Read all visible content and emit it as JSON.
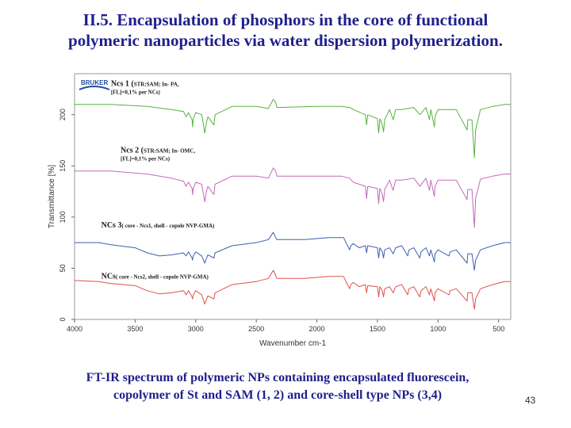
{
  "slide": {
    "title_line1": "II.5. Encapsulation of phosphors in the core of functional",
    "title_line2": "polymeric nanoparticles via water dispersion polymerization.",
    "caption_line1": "FT-IR spectrum of polymeric NPs containing encapsulated fluorescein,",
    "caption_line2": "copolymer of St and SAM (1, 2) and core-shell type NPs (3,4)",
    "page_number": "43",
    "logo_text": "BRUKER"
  },
  "chart_data": {
    "type": "line",
    "xlabel": "Wavenumber cm-1",
    "ylabel": "Transmittance [%]",
    "xlim": [
      4000,
      400
    ],
    "ylim": [
      0,
      240
    ],
    "x_reversed": true,
    "grid": false,
    "x_ticks": [
      4000,
      3500,
      3000,
      2500,
      2000,
      1500,
      1000,
      500
    ],
    "y_ticks": [
      0,
      50,
      100,
      150,
      200
    ],
    "series": [
      {
        "name": "Ncs 1 (STR:SAM; In- PA, [FL]=0,1% per NCs)",
        "label_main": "Ncs 1 (",
        "label_small": "STR:SAM; In- PA,",
        "label_line2": "[FL]=0,1% per NCs)",
        "color": "#57b33e",
        "points": [
          [
            4000,
            210
          ],
          [
            3700,
            210
          ],
          [
            3400,
            208
          ],
          [
            3200,
            205
          ],
          [
            3100,
            203
          ],
          [
            3080,
            198
          ],
          [
            3060,
            202
          ],
          [
            3030,
            195
          ],
          [
            3026,
            188
          ],
          [
            3020,
            196
          ],
          [
            3000,
            202
          ],
          [
            2950,
            200
          ],
          [
            2925,
            182
          ],
          [
            2910,
            193
          ],
          [
            2900,
            198
          ],
          [
            2850,
            190
          ],
          [
            2840,
            200
          ],
          [
            2700,
            208
          ],
          [
            2500,
            208
          ],
          [
            2400,
            206
          ],
          [
            2360,
            215
          ],
          [
            2340,
            212
          ],
          [
            2330,
            207
          ],
          [
            2000,
            208
          ],
          [
            1800,
            208
          ],
          [
            1730,
            207
          ],
          [
            1700,
            205
          ],
          [
            1600,
            200
          ],
          [
            1590,
            190
          ],
          [
            1580,
            200
          ],
          [
            1500,
            196
          ],
          [
            1490,
            182
          ],
          [
            1480,
            196
          ],
          [
            1460,
            190
          ],
          [
            1450,
            183
          ],
          [
            1440,
            195
          ],
          [
            1400,
            205
          ],
          [
            1370,
            195
          ],
          [
            1350,
            205
          ],
          [
            1300,
            205
          ],
          [
            1200,
            207
          ],
          [
            1150,
            200
          ],
          [
            1100,
            207
          ],
          [
            1070,
            195
          ],
          [
            1060,
            205
          ],
          [
            1030,
            188
          ],
          [
            1025,
            198
          ],
          [
            1000,
            205
          ],
          [
            900,
            205
          ],
          [
            850,
            205
          ],
          [
            760,
            185
          ],
          [
            755,
            195
          ],
          [
            720,
            195
          ],
          [
            700,
            158
          ],
          [
            690,
            185
          ],
          [
            650,
            205
          ],
          [
            550,
            208
          ],
          [
            450,
            210
          ],
          [
            400,
            210
          ]
        ]
      },
      {
        "name": "Ncs 2 (STR:SAM; In- OMC, [FL]=0,1% per NCs)",
        "label_main": "Ncs 2 (",
        "label_small": "STR:SAM; In- OMC,",
        "label_line2": "[FL]=0,1% per NCs)",
        "color": "#c46ab8",
        "points": [
          [
            4000,
            145
          ],
          [
            3700,
            145
          ],
          [
            3400,
            142
          ],
          [
            3200,
            138
          ],
          [
            3100,
            135
          ],
          [
            3080,
            130
          ],
          [
            3060,
            134
          ],
          [
            3030,
            128
          ],
          [
            3026,
            122
          ],
          [
            3020,
            128
          ],
          [
            3000,
            134
          ],
          [
            2950,
            132
          ],
          [
            2925,
            115
          ],
          [
            2910,
            126
          ],
          [
            2900,
            130
          ],
          [
            2850,
            122
          ],
          [
            2840,
            132
          ],
          [
            2700,
            140
          ],
          [
            2500,
            140
          ],
          [
            2400,
            138
          ],
          [
            2360,
            148
          ],
          [
            2340,
            145
          ],
          [
            2330,
            140
          ],
          [
            2000,
            140
          ],
          [
            1800,
            140
          ],
          [
            1730,
            138
          ],
          [
            1700,
            134
          ],
          [
            1600,
            130
          ],
          [
            1590,
            118
          ],
          [
            1580,
            130
          ],
          [
            1500,
            128
          ],
          [
            1490,
            113
          ],
          [
            1480,
            128
          ],
          [
            1460,
            122
          ],
          [
            1450,
            115
          ],
          [
            1440,
            127
          ],
          [
            1400,
            136
          ],
          [
            1370,
            126
          ],
          [
            1350,
            136
          ],
          [
            1300,
            136
          ],
          [
            1200,
            138
          ],
          [
            1150,
            130
          ],
          [
            1100,
            138
          ],
          [
            1070,
            126
          ],
          [
            1060,
            136
          ],
          [
            1030,
            120
          ],
          [
            1025,
            130
          ],
          [
            1000,
            136
          ],
          [
            900,
            136
          ],
          [
            850,
            136
          ],
          [
            760,
            117
          ],
          [
            755,
            127
          ],
          [
            720,
            127
          ],
          [
            700,
            90
          ],
          [
            690,
            118
          ],
          [
            650,
            137
          ],
          [
            550,
            140
          ],
          [
            450,
            142
          ],
          [
            400,
            142
          ]
        ]
      },
      {
        "name": "NCs 3( core - Ncs1, shell - copole NVP-GMA)",
        "label_main": "NCs 3",
        "label_small": "( core - Ncs1, shell - copole NVP-GMA)",
        "label_line2": "",
        "color": "#3f5fb0",
        "points": [
          [
            4000,
            75
          ],
          [
            3800,
            75
          ],
          [
            3700,
            73
          ],
          [
            3500,
            70
          ],
          [
            3400,
            65
          ],
          [
            3300,
            62
          ],
          [
            3200,
            63
          ],
          [
            3100,
            65
          ],
          [
            3080,
            62
          ],
          [
            3060,
            66
          ],
          [
            3030,
            60
          ],
          [
            3026,
            58
          ],
          [
            3020,
            62
          ],
          [
            3000,
            66
          ],
          [
            2950,
            62
          ],
          [
            2925,
            55
          ],
          [
            2910,
            60
          ],
          [
            2900,
            63
          ],
          [
            2850,
            60
          ],
          [
            2840,
            65
          ],
          [
            2700,
            72
          ],
          [
            2500,
            75
          ],
          [
            2400,
            78
          ],
          [
            2360,
            85
          ],
          [
            2340,
            80
          ],
          [
            2330,
            78
          ],
          [
            2100,
            78
          ],
          [
            1900,
            80
          ],
          [
            1780,
            80
          ],
          [
            1730,
            68
          ],
          [
            1720,
            72
          ],
          [
            1700,
            74
          ],
          [
            1650,
            70
          ],
          [
            1600,
            72
          ],
          [
            1590,
            65
          ],
          [
            1580,
            72
          ],
          [
            1500,
            70
          ],
          [
            1490,
            60
          ],
          [
            1480,
            70
          ],
          [
            1460,
            66
          ],
          [
            1450,
            60
          ],
          [
            1440,
            68
          ],
          [
            1400,
            70
          ],
          [
            1370,
            64
          ],
          [
            1350,
            70
          ],
          [
            1300,
            72
          ],
          [
            1250,
            62
          ],
          [
            1240,
            68
          ],
          [
            1200,
            70
          ],
          [
            1150,
            60
          ],
          [
            1140,
            66
          ],
          [
            1100,
            70
          ],
          [
            1070,
            62
          ],
          [
            1060,
            68
          ],
          [
            1030,
            56
          ],
          [
            1025,
            64
          ],
          [
            1000,
            68
          ],
          [
            910,
            62
          ],
          [
            900,
            66
          ],
          [
            850,
            68
          ],
          [
            760,
            55
          ],
          [
            755,
            64
          ],
          [
            720,
            64
          ],
          [
            700,
            48
          ],
          [
            690,
            58
          ],
          [
            650,
            68
          ],
          [
            550,
            72
          ],
          [
            450,
            75
          ],
          [
            400,
            75
          ]
        ]
      },
      {
        "name": "NCs ( core - Ncs2, shell - copole NVP-GMA)",
        "label_main": "NCs",
        "label_small": "( core - Ncs2, shell - copole NVP-GMA)",
        "label_line2": "",
        "color": "#e0524a",
        "points": [
          [
            4000,
            38
          ],
          [
            3800,
            37
          ],
          [
            3700,
            35
          ],
          [
            3500,
            33
          ],
          [
            3400,
            28
          ],
          [
            3300,
            25
          ],
          [
            3200,
            26
          ],
          [
            3100,
            28
          ],
          [
            3080,
            24
          ],
          [
            3060,
            28
          ],
          [
            3030,
            22
          ],
          [
            3026,
            20
          ],
          [
            3020,
            24
          ],
          [
            3000,
            28
          ],
          [
            2950,
            24
          ],
          [
            2925,
            15
          ],
          [
            2910,
            20
          ],
          [
            2900,
            23
          ],
          [
            2850,
            20
          ],
          [
            2840,
            26
          ],
          [
            2700,
            34
          ],
          [
            2500,
            37
          ],
          [
            2400,
            40
          ],
          [
            2360,
            48
          ],
          [
            2340,
            43
          ],
          [
            2330,
            40
          ],
          [
            2100,
            40
          ],
          [
            1900,
            42
          ],
          [
            1780,
            42
          ],
          [
            1730,
            30
          ],
          [
            1720,
            34
          ],
          [
            1700,
            36
          ],
          [
            1650,
            32
          ],
          [
            1600,
            34
          ],
          [
            1590,
            26
          ],
          [
            1580,
            33
          ],
          [
            1500,
            32
          ],
          [
            1490,
            22
          ],
          [
            1480,
            32
          ],
          [
            1460,
            28
          ],
          [
            1450,
            22
          ],
          [
            1440,
            30
          ],
          [
            1400,
            32
          ],
          [
            1370,
            26
          ],
          [
            1350,
            32
          ],
          [
            1300,
            34
          ],
          [
            1250,
            24
          ],
          [
            1240,
            30
          ],
          [
            1200,
            32
          ],
          [
            1150,
            22
          ],
          [
            1140,
            28
          ],
          [
            1100,
            32
          ],
          [
            1070,
            24
          ],
          [
            1060,
            30
          ],
          [
            1030,
            18
          ],
          [
            1025,
            26
          ],
          [
            1000,
            30
          ],
          [
            910,
            24
          ],
          [
            900,
            28
          ],
          [
            850,
            30
          ],
          [
            760,
            18
          ],
          [
            755,
            26
          ],
          [
            720,
            26
          ],
          [
            700,
            10
          ],
          [
            690,
            20
          ],
          [
            650,
            30
          ],
          [
            550,
            34
          ],
          [
            450,
            37
          ],
          [
            400,
            37
          ]
        ]
      }
    ]
  }
}
